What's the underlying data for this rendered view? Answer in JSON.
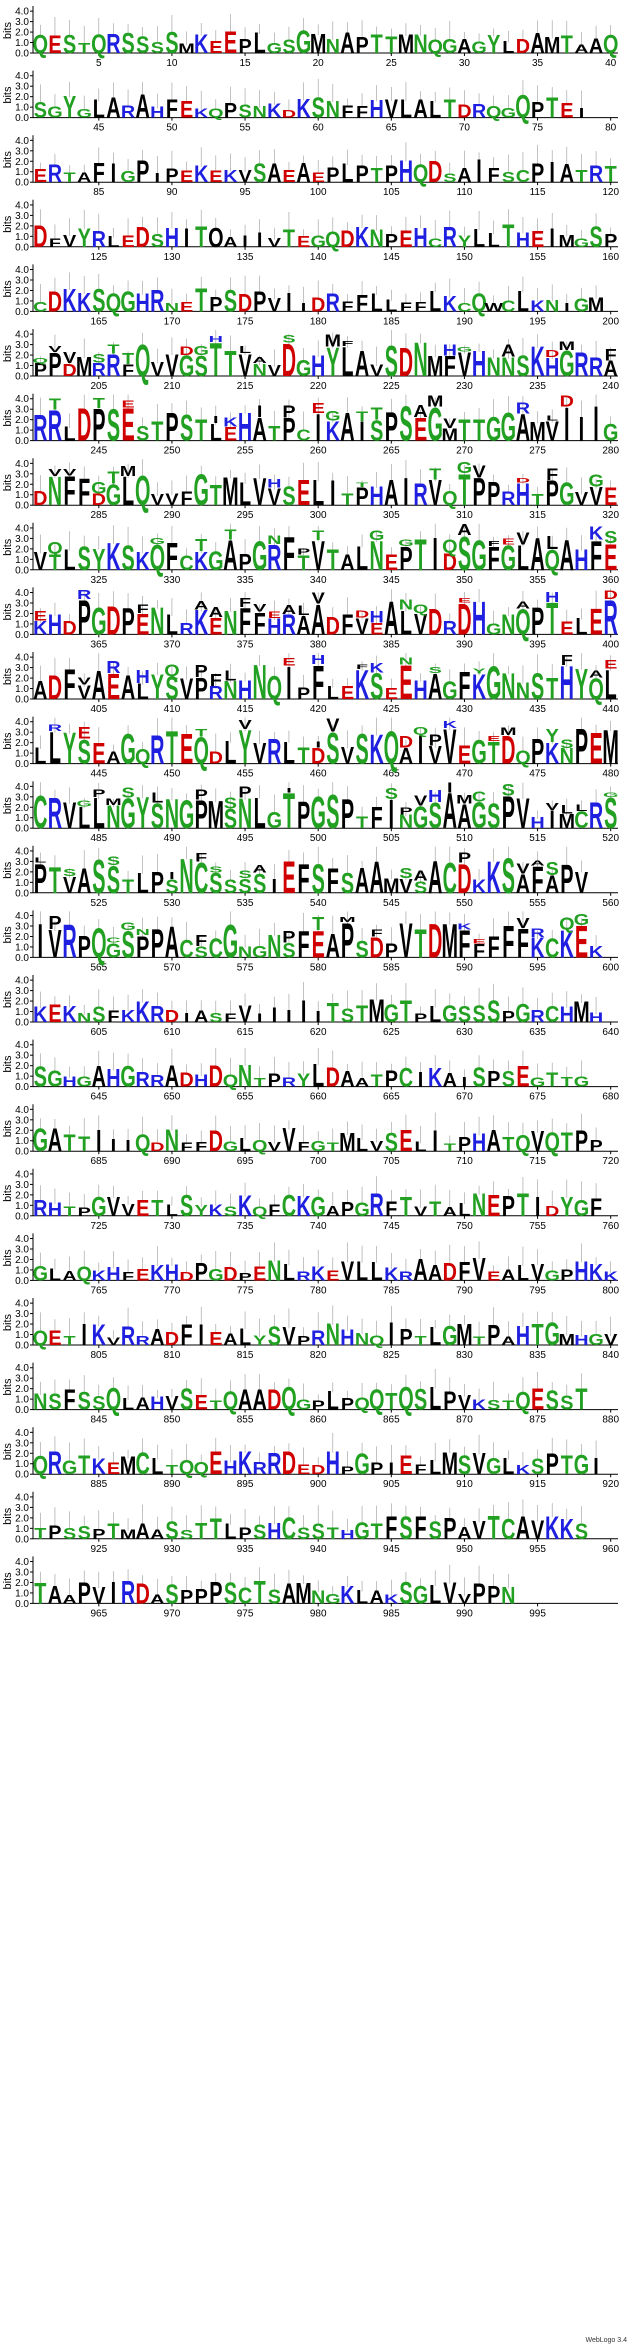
{
  "chart_data": {
    "type": "sequence-logo",
    "ylabel": "bits",
    "y_ticks": [
      "0.0",
      "1.0",
      "2.0",
      "3.0",
      "4.0"
    ],
    "ylim": [
      0,
      4.3
    ],
    "positions_per_row": 40,
    "total_positions": 995,
    "x_tick_every": 5,
    "row_sequences": [
      "QESTQRSSSSMKEEPLGSGMNAPTTMNQGAGYLDAMTAAQ",
      "SGYGLARAHFEKQPSNKDKSNFFHVLALTDRQGQPTEI",
      "ERTAFIGPIPEKEKVSAEAEPLPTPHQDSAIFSCPIATRTEQ",
      "DFVYRLEDSHITOAIIVTEGQDKNPEHCRYLLTHEIMGSPC",
      "CDKKSQGHRNETPSDPVIIDRFFLLFFLKCQWCLKNIGM",
      "PPDMRRFQVVGSTTVNVDGHYLAVSDNMFVHNNSKHGRRA",
      "RRLDPSESTPSTLEHATPCIKAISPSEGMTTGGAMVIIIG",
      "DNFFDGLQVVFGTMLVVSELITPHAIRVQTPPRHTPGVVE",
      "VTLSYKSKQFCKGAPGRFTVTALNEPTIDSGFGLAQAHFE",
      "KHDPGDPENLRKENFFHRAADFVEALVDRDHGNQPTELERA",
      "ADFVAEALYSVPRNHNQIPFLEKSEEHAGFKGNNSTHYQLQ",
      "LLYSEAGQRTEQDLYVRLTDSVSKQAIVVEGTDQPKNPEM",
      "CRVLLNGYSNGPMSNLGTPGSPTFINGSAAGSPVHIMCRS",
      "PTVASSTLPSNCSSSSIEFSFSAAMVSACDKKSAFAPV",
      "IVRPQGSPPACSCGNGNSFEAPSDPVTDMFFFFFKCKEK",
      "KEKNSFKKRDIASFVIIIIITSTMGTPLGSSSPGRCHMH",
      "SGHGAHGRRADHDQNTPRYLDAATPCIKAISPSEGTTG",
      "GATTIIIQDNFFDGLQVVFGTMLVSELITPHATQVQTPP",
      "RHTPGVVETLSYKSKQFCKGAPGRFTVTALNEPTIDYGF",
      "GLAQKHFEKHDPGDPENLRKEVLLKRAADFVEALVGPHKK",
      "QETIKVRRADFIEALYSVPRNHNQIPTLGMTPAHTGMHGV",
      "NSFSSQLAHVSETQAADQGPLPQQTQSLPVKSTQESST",
      "QRGTKEMCLTQQEHKRRDEDHPGPIEFLMSVGLKSPTGI",
      "TPSSPTMAASSTTLPSHCSSTHGTFSFSPAVTCAVKKS",
      "TAAPVIRDASPPPSCTSAMNGKLAKSGLVVPPN"
    ],
    "colors": {
      "green": "#22a022",
      "blue": "#1f1fe0",
      "black": "#000000",
      "red": "#d00000",
      "purple": "#c020c0"
    }
  },
  "footer": "WebLogo 3.4"
}
